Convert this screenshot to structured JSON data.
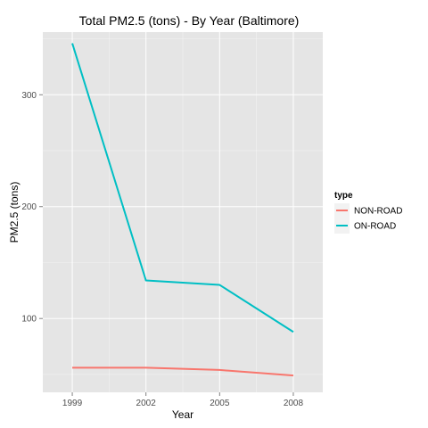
{
  "chart_data": {
    "type": "line",
    "title": "Total PM2.5 (tons) - By Year (Baltimore)",
    "xlabel": "Year",
    "ylabel": "PM2.5 (tons)",
    "x": [
      1999,
      2002,
      2005,
      2008
    ],
    "x_tick_labels": [
      "1999",
      "2002",
      "2005",
      "2008"
    ],
    "xlim": [
      1997.8,
      2009.2
    ],
    "ylim": [
      34,
      356
    ],
    "y_ticks": [
      100,
      200,
      300
    ],
    "y_tick_labels": [
      "100",
      "200",
      "300"
    ],
    "grid": true,
    "legend": {
      "title": "type",
      "position": "right"
    },
    "series": [
      {
        "name": "NON-ROAD",
        "color": "#F8766D",
        "values": [
          56,
          56,
          54,
          49
        ]
      },
      {
        "name": "ON-ROAD",
        "color": "#00BFC4",
        "values": [
          346,
          134,
          130,
          88
        ]
      }
    ]
  },
  "colors": {
    "panel_background": "#E5E5E5",
    "gridline": "#FFFFFF",
    "tick_text": "#4D4D4D"
  }
}
